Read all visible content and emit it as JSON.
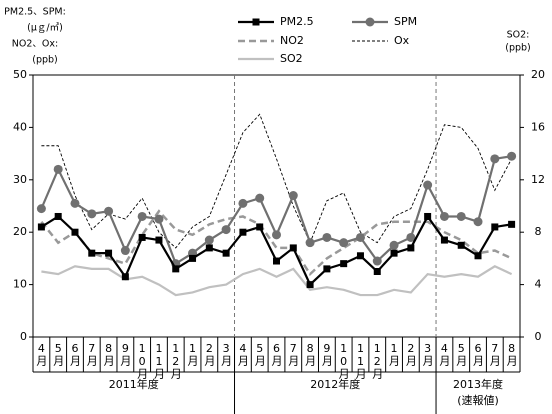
{
  "chart_data": {
    "type": "line",
    "y_label_lines": [
      "PM2.5、SPM:",
      "(μｇ/㎥)",
      "NO2、Ox:",
      "(ppb)"
    ],
    "y2_label_lines": [
      "SO2:",
      "(ppb)"
    ],
    "categories": [
      "4月",
      "5月",
      "6月",
      "7月",
      "8月",
      "9月",
      "10月",
      "11月",
      "12月",
      "1月",
      "2月",
      "3月",
      "4月",
      "5月",
      "6月",
      "7月",
      "8月",
      "9月",
      "10月",
      "11月",
      "12月",
      "1月",
      "2月",
      "3月",
      "4月",
      "5月",
      "6月",
      "7月",
      "8月"
    ],
    "groups": [
      [
        "2011年度"
      ],
      [
        "2012年度"
      ],
      [
        "2013年度",
        "(速報値)"
      ]
    ],
    "ylim": [
      0,
      50
    ],
    "yticks": [
      0,
      10,
      20,
      30,
      40,
      50
    ],
    "y2lim": [
      0,
      20
    ],
    "y2ticks": [
      0,
      4,
      8,
      12,
      16,
      20
    ],
    "series": [
      {
        "name": "PM2.5",
        "color": "#000000",
        "marker": "square",
        "dash": "solid",
        "values": [
          21,
          23,
          20,
          16,
          16,
          11.5,
          19,
          18.5,
          13,
          15,
          17,
          16,
          20,
          21,
          14.5,
          17,
          10,
          13,
          14,
          15.5,
          12.5,
          16,
          17,
          23,
          18.5,
          17.5,
          15.5,
          21,
          21.5
        ]
      },
      {
        "name": "SPM",
        "color": "#707070",
        "marker": "circle",
        "dash": "solid",
        "values": [
          24.5,
          32,
          25.5,
          23.5,
          24,
          16.5,
          23,
          22.5,
          14,
          16,
          18.5,
          20.5,
          25.5,
          26.5,
          19.5,
          27,
          18,
          19,
          18,
          19,
          14.5,
          17.5,
          19,
          29,
          23,
          23,
          22,
          34,
          34.5
        ]
      },
      {
        "name": "NO2",
        "color": "#999999",
        "marker": "none",
        "dash": "dashed",
        "values": [
          22,
          18,
          20,
          16,
          15,
          14,
          19.5,
          24,
          20.5,
          19.5,
          21.5,
          22.5,
          23,
          21.5,
          17,
          17,
          12,
          15,
          17,
          19,
          21.5,
          22,
          22,
          22,
          20,
          18.5,
          16,
          16.5,
          15
        ]
      },
      {
        "name": "Ox",
        "color": "#000000",
        "marker": "none",
        "dash": "dotted",
        "values": [
          36.5,
          36.5,
          27,
          20.5,
          23.5,
          22.5,
          26.5,
          20,
          17,
          21,
          23,
          31,
          39,
          42.5,
          34,
          25,
          18,
          26,
          27.5,
          20,
          18,
          23,
          24.5,
          32,
          40.5,
          40,
          36,
          28,
          34
        ]
      },
      {
        "name": "SO2",
        "color": "#c0c0c0",
        "marker": "none",
        "dash": "solid",
        "axis": "y2",
        "values": [
          5,
          4.8,
          5.4,
          5.2,
          5.2,
          4.4,
          4.6,
          4,
          3.2,
          3.4,
          3.8,
          4,
          4.8,
          5.2,
          4.6,
          5.2,
          3.6,
          3.8,
          3.6,
          3.2,
          3.2,
          3.6,
          3.4,
          4.8,
          4.6,
          4.8,
          4.6,
          5.4,
          4.8
        ]
      }
    ]
  }
}
